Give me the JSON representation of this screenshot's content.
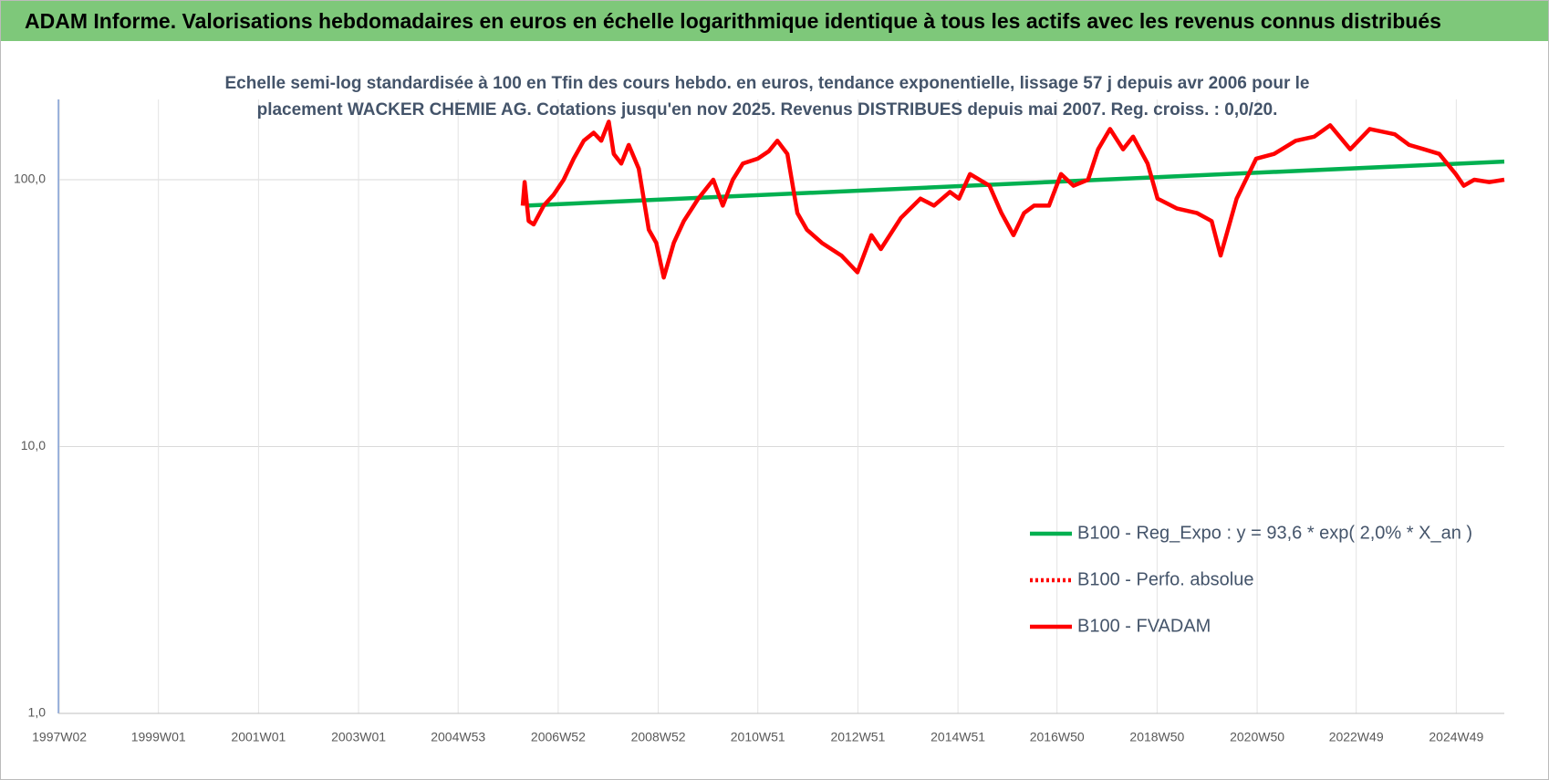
{
  "chart_data": {
    "type": "line",
    "title": "ADAM Informe. Valorisations hebdomadaires en euros en échelle logarithmique identique à tous les actifs avec les revenus connus distribués",
    "subtitle": "Echelle semi-log standardisée à 100 en Tfin des cours hebdo. en euros, tendance exponentielle, lissage 57 j depuis avr 2006 pour le placement WACKER CHEMIE AG. Cotations jusqu'en nov 2025. Revenus DISTRIBUES depuis mai 2007. Reg. croiss. : 0,0/20.",
    "log_scale": true,
    "grid": true,
    "legend": "right",
    "ylim": [
      1,
      200
    ],
    "yticks": [
      {
        "value": 1,
        "label": "1,0"
      },
      {
        "value": 10,
        "label": "10,0"
      },
      {
        "value": 100,
        "label": "100,0"
      }
    ],
    "xlim": [
      1997.0,
      2025.9
    ],
    "xticks": [
      {
        "value": 1997.02,
        "label": "1997W02"
      },
      {
        "value": 1999.0,
        "label": "1999W01"
      },
      {
        "value": 2001.0,
        "label": "2001W01"
      },
      {
        "value": 2003.0,
        "label": "2003W01"
      },
      {
        "value": 2004.99,
        "label": "2004W53"
      },
      {
        "value": 2006.99,
        "label": "2006W52"
      },
      {
        "value": 2008.99,
        "label": "2008W52"
      },
      {
        "value": 2010.98,
        "label": "2010W51"
      },
      {
        "value": 2012.98,
        "label": "2012W51"
      },
      {
        "value": 2014.98,
        "label": "2014W51"
      },
      {
        "value": 2016.96,
        "label": "2016W50"
      },
      {
        "value": 2018.96,
        "label": "2018W50"
      },
      {
        "value": 2020.96,
        "label": "2020W50"
      },
      {
        "value": 2022.94,
        "label": "2022W49"
      },
      {
        "value": 2024.94,
        "label": "2024W49"
      }
    ],
    "series": [
      {
        "name": "B100 - Reg_Expo : y = 93,6 * exp( 2,0% *  X_an )",
        "color": "#00b050",
        "style": "solid",
        "x": [
          2006.35,
          2025.9
        ],
        "values": [
          80,
          117
        ]
      },
      {
        "name": "B100 - Perfo. absolue",
        "color": "#ff0000",
        "style": "dotted",
        "x": [],
        "values": []
      },
      {
        "name": "B100 - FVADAM",
        "color": "#ff0000",
        "style": "solid",
        "x": [
          2006.28,
          2006.32,
          2006.4,
          2006.5,
          2006.7,
          2006.9,
          2007.1,
          2007.3,
          2007.5,
          2007.7,
          2007.85,
          2008.0,
          2008.1,
          2008.25,
          2008.4,
          2008.6,
          2008.8,
          2008.95,
          2009.1,
          2009.3,
          2009.5,
          2009.79,
          2010.09,
          2010.28,
          2010.48,
          2010.68,
          2010.98,
          2011.2,
          2011.37,
          2011.57,
          2011.77,
          2011.96,
          2012.26,
          2012.65,
          2012.97,
          2013.25,
          2013.44,
          2013.84,
          2014.23,
          2014.5,
          2014.82,
          2015.0,
          2015.22,
          2015.61,
          2015.85,
          2016.09,
          2016.3,
          2016.5,
          2016.8,
          2017.04,
          2017.29,
          2017.58,
          2017.78,
          2018.02,
          2018.28,
          2018.48,
          2018.77,
          2018.97,
          2019.36,
          2019.76,
          2020.05,
          2020.23,
          2020.55,
          2020.94,
          2021.3,
          2021.73,
          2022.1,
          2022.42,
          2022.82,
          2023.21,
          2023.71,
          2024.0,
          2024.3,
          2024.6,
          2024.93,
          2025.09,
          2025.3,
          2025.6,
          2025.9
        ],
        "values": [
          80,
          98,
          70,
          68,
          80,
          88,
          100,
          120,
          140,
          150,
          140,
          165,
          125,
          115,
          135,
          110,
          65,
          58,
          43,
          58,
          70,
          85,
          100,
          80,
          100,
          115,
          120,
          128,
          140,
          125,
          75,
          65,
          58,
          52,
          45,
          62,
          55,
          72,
          85,
          80,
          90,
          85,
          105,
          95,
          75,
          62,
          75,
          80,
          80,
          105,
          95,
          100,
          130,
          155,
          130,
          145,
          115,
          85,
          78,
          75,
          70,
          52,
          85,
          120,
          125,
          140,
          145,
          160,
          130,
          155,
          148,
          135,
          130,
          125,
          105,
          95,
          100,
          98,
          100
        ]
      }
    ]
  }
}
